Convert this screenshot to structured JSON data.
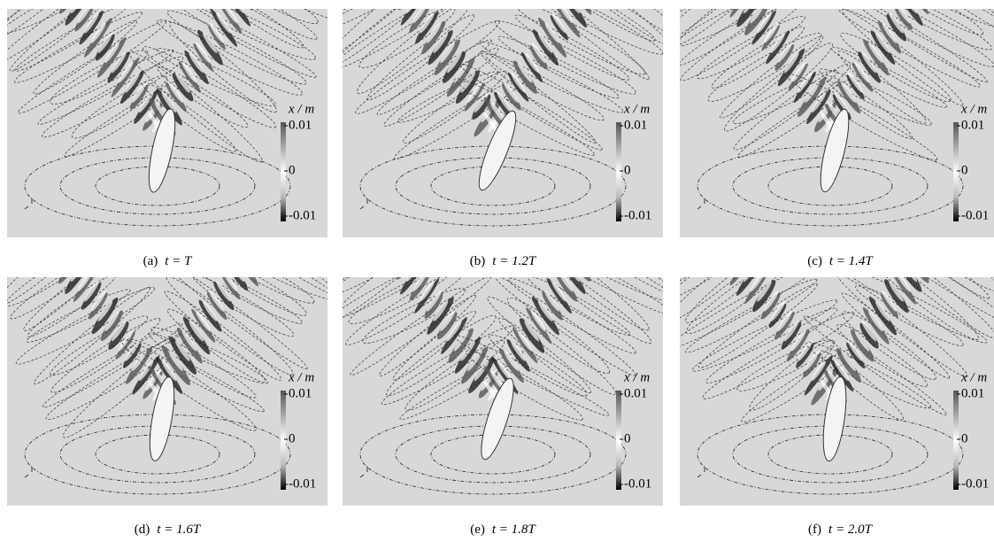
{
  "panels": [
    {
      "label": "(a)",
      "time": "t = T",
      "colorbar": {
        "title": "x / m",
        "ticks": [
          "0.01",
          "0",
          "-0.01"
        ]
      }
    },
    {
      "label": "(b)",
      "time": "t = 1.2T",
      "colorbar": {
        "title": "x / m",
        "ticks": [
          "0.01",
          "0",
          "-0.01"
        ]
      }
    },
    {
      "label": "(c)",
      "time": "t = 1.4T",
      "colorbar": {
        "title": "x / m",
        "ticks": [
          "0.01",
          "0",
          "-0.01"
        ]
      }
    },
    {
      "label": "(d)",
      "time": "t = 1.6T",
      "colorbar": {
        "title": "x / m",
        "ticks": [
          "0.01",
          "0",
          "-0.01"
        ]
      }
    },
    {
      "label": "(e)",
      "time": "t = 1.8T",
      "colorbar": {
        "title": "x / m",
        "ticks": [
          "0.01",
          "0",
          "-0.01"
        ]
      }
    },
    {
      "label": "(f)",
      "time": "t = 2.0T",
      "colorbar": {
        "title": "x / m",
        "ticks": [
          "0.01",
          "0",
          "-0.01"
        ]
      }
    }
  ]
}
